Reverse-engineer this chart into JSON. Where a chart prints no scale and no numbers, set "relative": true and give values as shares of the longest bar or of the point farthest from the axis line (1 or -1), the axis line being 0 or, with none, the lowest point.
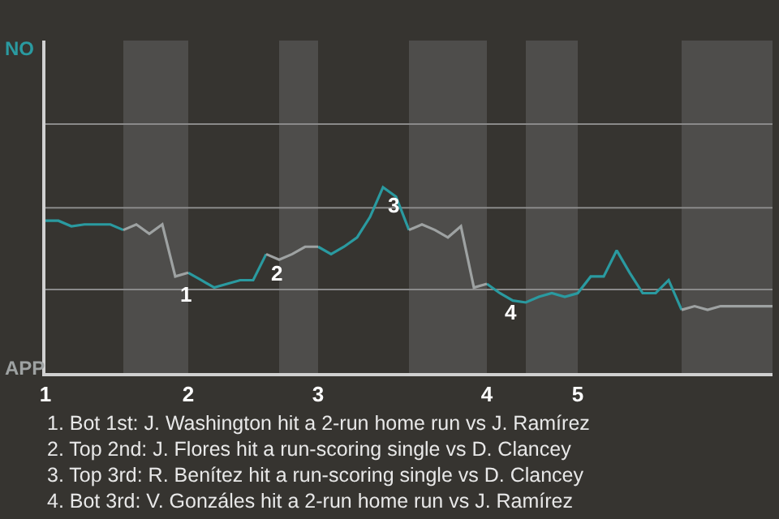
{
  "chart_data": {
    "type": "line",
    "relative": true,
    "categories": [
      "1",
      null,
      null,
      null,
      null,
      null,
      null,
      null,
      null,
      null,
      null,
      "2",
      null,
      null,
      null,
      null,
      null,
      null,
      null,
      null,
      null,
      "3",
      null,
      null,
      null,
      null,
      null,
      null,
      null,
      null,
      null,
      null,
      null,
      null,
      "4",
      null,
      null,
      null,
      null,
      null,
      null,
      "5",
      null,
      null,
      null,
      null,
      null,
      null,
      null,
      null,
      null,
      null,
      null,
      null,
      null,
      null,
      null
    ],
    "marker": "none",
    "line_style": "solid",
    "series": [
      {
        "color": "#2a9aa0",
        "values": [
          0.82,
          0.82,
          0.79,
          0.8,
          0.8,
          0.8,
          0.77,
          null,
          null,
          null,
          null,
          0.54,
          0.5,
          0.46,
          0.48,
          0.5,
          0.5,
          0.64,
          null,
          null,
          null,
          0.68,
          0.64,
          0.68,
          0.73,
          0.84,
          1,
          0.95,
          0.77,
          null,
          null,
          null,
          null,
          null,
          0.48,
          0.43,
          0.39,
          0.38,
          0.41,
          0.43,
          0.41,
          0.43,
          0.52,
          0.52,
          0.66,
          0.54,
          0.43,
          0.43,
          0.5,
          0.34,
          null,
          null,
          null,
          null,
          null,
          null,
          null
        ]
      },
      {
        "color": "#9ea2a2",
        "values": [
          null,
          null,
          null,
          null,
          null,
          null,
          0.77,
          0.8,
          0.75,
          0.8,
          0.52,
          0.54,
          null,
          null,
          null,
          null,
          null,
          0.64,
          0.61,
          0.64,
          0.68,
          0.68,
          null,
          null,
          null,
          null,
          null,
          null,
          0.77,
          0.8,
          0.77,
          0.73,
          0.79,
          0.46,
          0.48,
          null,
          null,
          null,
          null,
          null,
          null,
          null,
          null,
          null,
          null,
          null,
          null,
          null,
          null,
          0.34,
          0.36,
          0.34,
          0.36,
          0.36,
          0.36,
          0.36,
          0.36
        ]
      }
    ],
    "ref_lines": [
      {
        "axis": "y",
        "value": 0.45,
        "color": "#8a8a8a"
      },
      {
        "axis": "y",
        "value": 0.89,
        "color": "#8a8a8a"
      },
      {
        "axis": "y",
        "value": 1.34,
        "color": "#8a8a8a"
      }
    ],
    "annotations": [
      "NO",
      "APP",
      {
        "text": "1",
        "y": 0.52
      },
      {
        "text": "2",
        "y": 0.64
      },
      {
        "text": "3",
        "y": 1
      },
      {
        "text": "4",
        "y": 0.43
      },
      "1. Bot 1st: J. Washington hit a 2-run home run vs J. Ramírez",
      "2. Top 2nd: J. Flores hit a run-scoring single vs D. Clancey",
      "3. Top 3rd: R. Benítez hit a run-scoring single vs D. Clancey",
      "4. Bot 3rd: V. Gonzáles hit a 2-run home run vs J. Ramírez"
    ]
  }
}
